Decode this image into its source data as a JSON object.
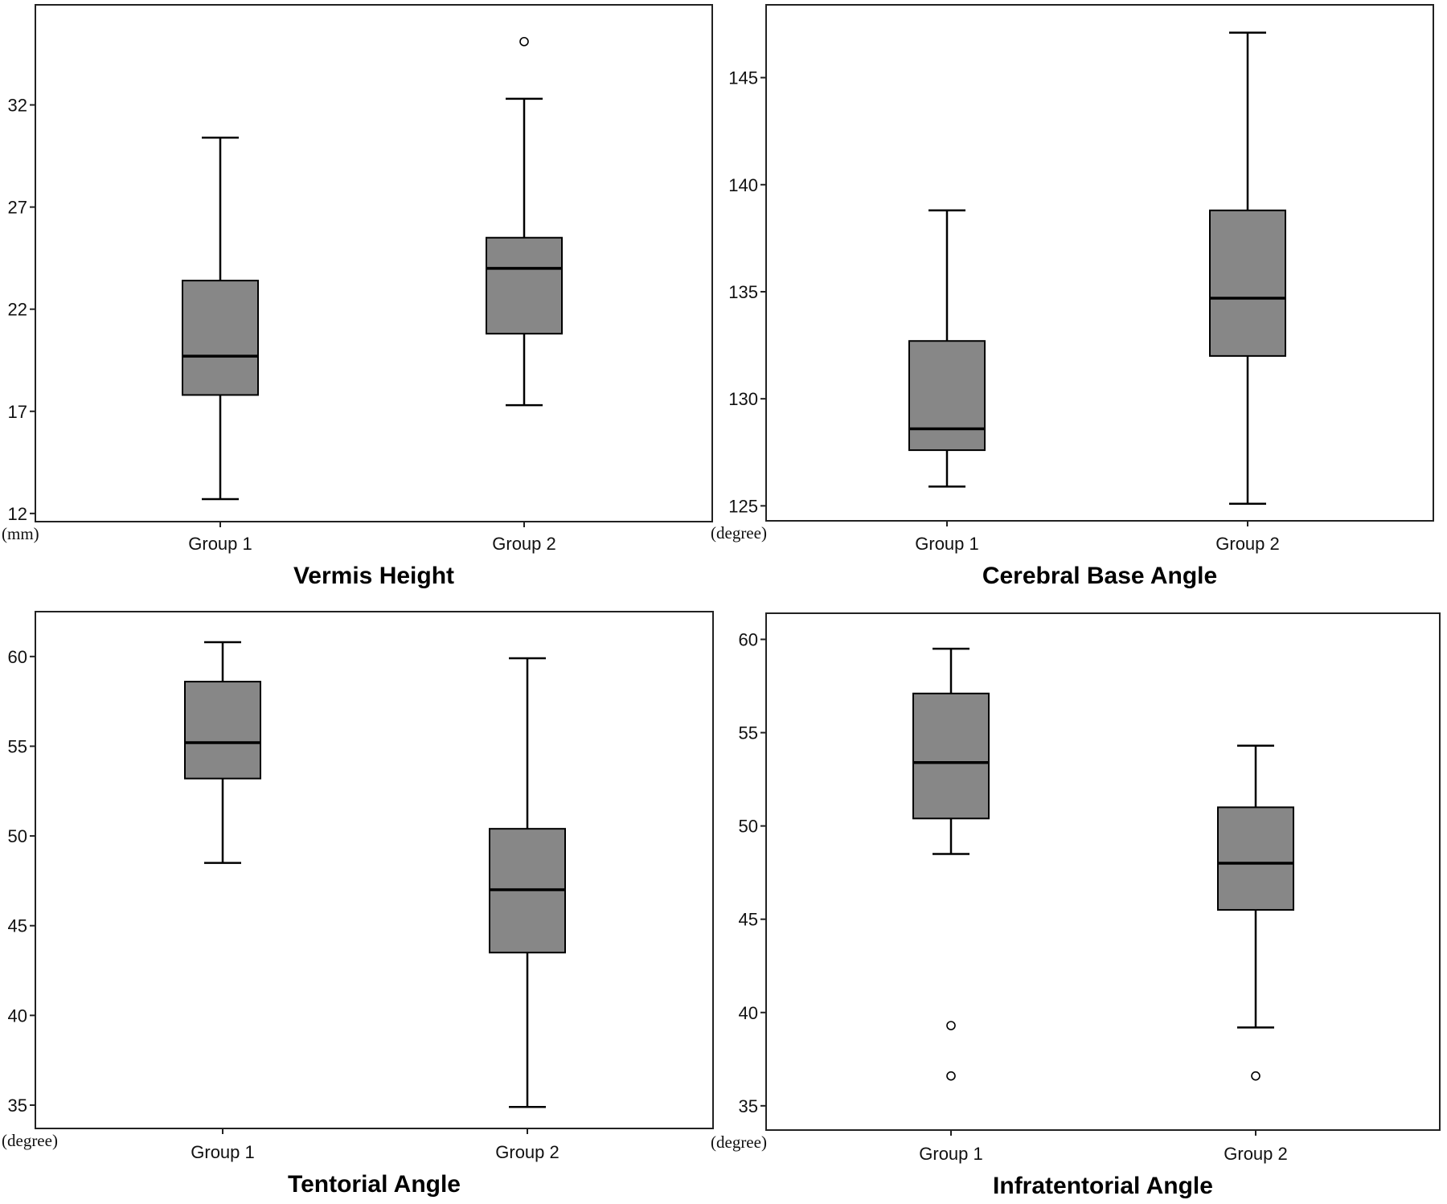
{
  "chart_data": [
    {
      "type": "box",
      "title": "Vermis Height",
      "ylabel": "(mm)",
      "categories": [
        "Group 1",
        "Group 2"
      ],
      "yticks": [
        12,
        17,
        22,
        27,
        32
      ],
      "ylim": [
        11.6,
        36.9
      ],
      "boxes": [
        {
          "category": "Group 1",
          "min": 12.7,
          "q1": 17.8,
          "median": 19.7,
          "q3": 23.4,
          "max": 30.4,
          "outliers": []
        },
        {
          "category": "Group 2",
          "min": 17.3,
          "q1": 20.8,
          "median": 24.0,
          "q3": 25.5,
          "max": 32.3,
          "outliers": [
            35.1
          ]
        }
      ]
    },
    {
      "type": "box",
      "title": "Cerebral Base Angle",
      "ylabel": "(degree)",
      "categories": [
        "Group 1",
        "Group 2"
      ],
      "yticks": [
        125,
        130,
        135,
        140,
        145
      ],
      "ylim": [
        124.3,
        148.4
      ],
      "boxes": [
        {
          "category": "Group 1",
          "min": 125.9,
          "q1": 127.6,
          "median": 128.6,
          "q3": 132.7,
          "max": 138.8,
          "outliers": []
        },
        {
          "category": "Group 2",
          "min": 125.1,
          "q1": 132.0,
          "median": 134.7,
          "q3": 138.8,
          "max": 147.1,
          "outliers": []
        }
      ]
    },
    {
      "type": "box",
      "title": "Tentorial Angle",
      "ylabel": "(degree)",
      "categories": [
        "Group 1",
        "Group 2"
      ],
      "yticks": [
        35,
        40,
        45,
        50,
        55,
        60
      ],
      "ylim": [
        33.7,
        62.5
      ],
      "boxes": [
        {
          "category": "Group 1",
          "min": 48.5,
          "q1": 53.2,
          "median": 55.2,
          "q3": 58.6,
          "max": 60.8,
          "outliers": []
        },
        {
          "category": "Group 2",
          "min": 34.9,
          "q1": 43.5,
          "median": 47.0,
          "q3": 50.4,
          "max": 59.9,
          "outliers": []
        }
      ]
    },
    {
      "type": "box",
      "title": "Infratentorial Angle",
      "ylabel": "(degree)",
      "categories": [
        "Group 1",
        "Group 2"
      ],
      "yticks": [
        35,
        40,
        45,
        50,
        55,
        60
      ],
      "ylim": [
        33.7,
        61.4
      ],
      "boxes": [
        {
          "category": "Group 1",
          "min": 48.5,
          "q1": 50.4,
          "median": 53.4,
          "q3": 57.1,
          "max": 59.5,
          "outliers": [
            39.3,
            36.6
          ]
        },
        {
          "category": "Group 2",
          "min": 39.2,
          "q1": 45.5,
          "median": 48.0,
          "q3": 51.0,
          "max": 54.3,
          "outliers": [
            36.6
          ]
        }
      ]
    }
  ]
}
